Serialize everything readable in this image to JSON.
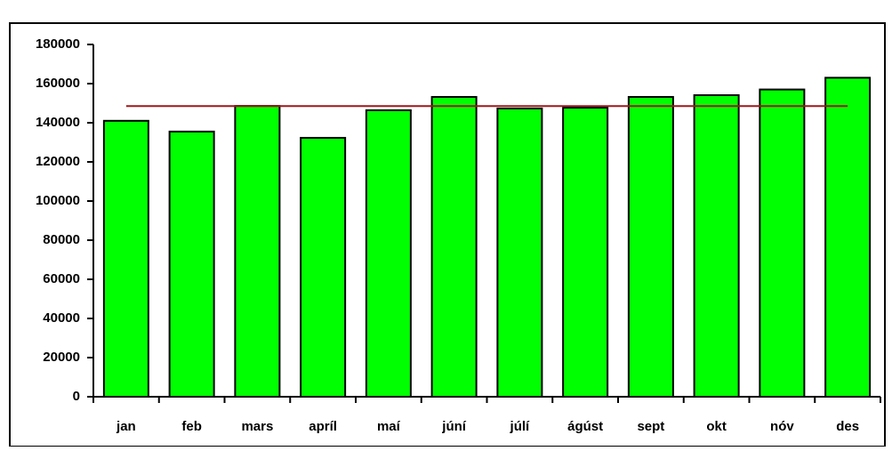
{
  "chart_data": {
    "type": "bar",
    "categories": [
      "jan",
      "feb",
      "mars",
      "apríl",
      "maí",
      "júní",
      "júlí",
      "ágúst",
      "sept",
      "okt",
      "nóv",
      "des"
    ],
    "series": [
      {
        "type": "bar",
        "color": "#00ff00",
        "values": [
          141000,
          135500,
          148600,
          132300,
          146400,
          153200,
          147300,
          147700,
          153200,
          154100,
          157000,
          163000
        ]
      },
      {
        "type": "line",
        "color": "#a0161a",
        "values": [
          148500,
          148500,
          148500,
          148500,
          148500,
          148500,
          148500,
          148500,
          148500,
          148500,
          148500,
          148500
        ]
      }
    ],
    "ylim": [
      0,
      180000
    ],
    "yticks": [
      0,
      20000,
      40000,
      60000,
      80000,
      100000,
      120000,
      140000,
      160000,
      180000
    ]
  }
}
